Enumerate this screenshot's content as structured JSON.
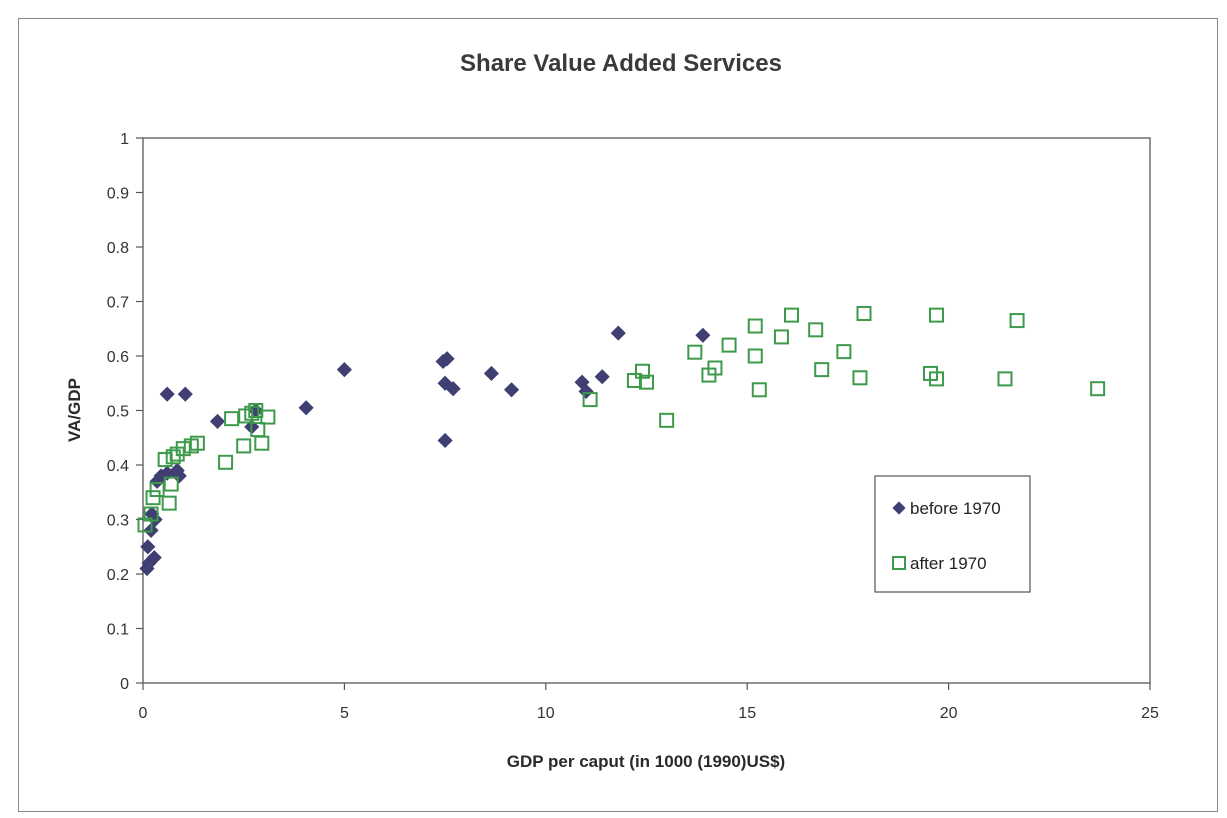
{
  "chart_data": {
    "type": "scatter",
    "title": "Share Value Added Services",
    "xlabel": "GDP per caput (in 1000 (1990)US$)",
    "ylabel": "VA/GDP",
    "xlim": [
      0,
      25
    ],
    "ylim": [
      0,
      1
    ],
    "xticks": [
      0,
      5,
      10,
      15,
      20,
      25
    ],
    "yticks": [
      0,
      0.1,
      0.2,
      0.3,
      0.4,
      0.5,
      0.6,
      0.7,
      0.8,
      0.9,
      1
    ],
    "grid": false,
    "legend": "right",
    "series": [
      {
        "name": "before 1970",
        "marker": "diamond",
        "color": "#3f3f73",
        "points": [
          [
            0.1,
            0.21
          ],
          [
            0.12,
            0.25
          ],
          [
            0.15,
            0.22
          ],
          [
            0.2,
            0.28
          ],
          [
            0.22,
            0.31
          ],
          [
            0.28,
            0.23
          ],
          [
            0.3,
            0.3
          ],
          [
            0.35,
            0.37
          ],
          [
            0.45,
            0.38
          ],
          [
            0.6,
            0.385
          ],
          [
            0.85,
            0.39
          ],
          [
            0.9,
            0.38
          ],
          [
            0.6,
            0.53
          ],
          [
            1.05,
            0.53
          ],
          [
            1.85,
            0.48
          ],
          [
            2.7,
            0.47
          ],
          [
            2.8,
            0.5
          ],
          [
            4.05,
            0.505
          ],
          [
            5.0,
            0.575
          ],
          [
            7.45,
            0.59
          ],
          [
            7.55,
            0.595
          ],
          [
            7.5,
            0.55
          ],
          [
            7.7,
            0.54
          ],
          [
            7.5,
            0.445
          ],
          [
            8.65,
            0.568
          ],
          [
            9.15,
            0.538
          ],
          [
            10.9,
            0.552
          ],
          [
            11.0,
            0.535
          ],
          [
            11.4,
            0.562
          ],
          [
            11.8,
            0.642
          ],
          [
            13.9,
            0.638
          ]
        ]
      },
      {
        "name": "after 1970",
        "marker": "square-open",
        "color": "#3c9a4a",
        "points": [
          [
            0.05,
            0.29
          ],
          [
            0.2,
            0.31
          ],
          [
            0.25,
            0.34
          ],
          [
            0.35,
            0.355
          ],
          [
            0.55,
            0.41
          ],
          [
            0.65,
            0.33
          ],
          [
            0.7,
            0.365
          ],
          [
            0.75,
            0.415
          ],
          [
            0.85,
            0.42
          ],
          [
            1.0,
            0.43
          ],
          [
            1.2,
            0.435
          ],
          [
            1.35,
            0.44
          ],
          [
            2.05,
            0.405
          ],
          [
            2.2,
            0.485
          ],
          [
            2.5,
            0.435
          ],
          [
            2.55,
            0.49
          ],
          [
            2.7,
            0.495
          ],
          [
            2.8,
            0.5
          ],
          [
            2.85,
            0.465
          ],
          [
            2.95,
            0.44
          ],
          [
            3.1,
            0.488
          ],
          [
            11.1,
            0.52
          ],
          [
            12.2,
            0.555
          ],
          [
            12.4,
            0.572
          ],
          [
            12.5,
            0.552
          ],
          [
            13.0,
            0.482
          ],
          [
            13.7,
            0.607
          ],
          [
            14.05,
            0.565
          ],
          [
            14.2,
            0.578
          ],
          [
            14.55,
            0.62
          ],
          [
            15.2,
            0.655
          ],
          [
            15.2,
            0.6
          ],
          [
            15.3,
            0.538
          ],
          [
            15.85,
            0.635
          ],
          [
            16.1,
            0.675
          ],
          [
            16.7,
            0.648
          ],
          [
            16.85,
            0.575
          ],
          [
            17.4,
            0.608
          ],
          [
            17.8,
            0.56
          ],
          [
            17.9,
            0.678
          ],
          [
            19.55,
            0.568
          ],
          [
            19.7,
            0.558
          ],
          [
            19.7,
            0.675
          ],
          [
            21.4,
            0.558
          ],
          [
            21.7,
            0.665
          ],
          [
            23.7,
            0.54
          ]
        ]
      }
    ]
  }
}
